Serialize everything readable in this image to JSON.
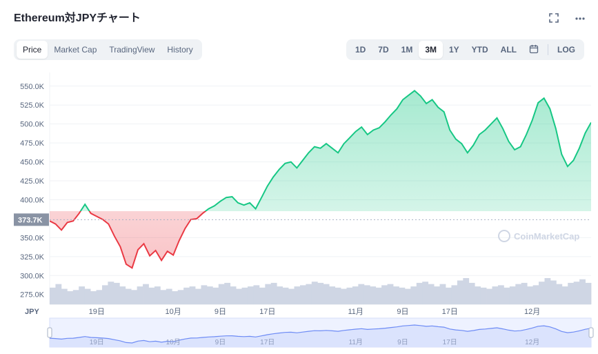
{
  "header": {
    "title": "Ethereum対JPYチャート",
    "fullscreen_icon": "expand-icon",
    "more_icon": "more-horizontal-icon"
  },
  "tabs": [
    {
      "label": "Price",
      "active": true
    },
    {
      "label": "Market Cap",
      "active": false
    },
    {
      "label": "TradingView",
      "active": false
    },
    {
      "label": "History",
      "active": false
    }
  ],
  "ranges": [
    {
      "label": "1D",
      "active": false
    },
    {
      "label": "7D",
      "active": false
    },
    {
      "label": "1M",
      "active": false
    },
    {
      "label": "3M",
      "active": true
    },
    {
      "label": "1Y",
      "active": false
    },
    {
      "label": "YTD",
      "active": false
    },
    {
      "label": "ALL",
      "active": false
    }
  ],
  "calendar_icon": "calendar-icon",
  "log_label": "LOG",
  "watermark": "CoinMarketCap",
  "colors": {
    "up": "#16c784",
    "down": "#ea3943",
    "volume": "#cfd6e4",
    "navigator": "#6d8bf5"
  },
  "chart_data": {
    "type": "line",
    "currency_label": "JPY",
    "y_ticks": [
      "550.0K",
      "525.0K",
      "500.0K",
      "475.0K",
      "450.0K",
      "425.0K",
      "400.0K",
      "350.0K",
      "325.0K",
      "300.0K",
      "275.0K"
    ],
    "y_tick_values": [
      550000,
      525000,
      500000,
      475000,
      450000,
      425000,
      400000,
      350000,
      325000,
      300000,
      275000
    ],
    "ylim": [
      262000,
      568000
    ],
    "baseline": {
      "label": "373.7K",
      "value": 373700
    },
    "x_ticks": [
      {
        "label": "19日",
        "day": 11
      },
      {
        "label": "10月",
        "day": 24
      },
      {
        "label": "9日",
        "day": 32
      },
      {
        "label": "17日",
        "day": 40
      },
      {
        "label": "11月",
        "day": 55
      },
      {
        "label": "9日",
        "day": 63
      },
      {
        "label": "17日",
        "day": 71
      },
      {
        "label": "12月",
        "day": 85
      }
    ],
    "xlim": [
      3,
      95
    ],
    "series": [
      {
        "x": [
          3,
          4,
          5,
          6,
          7,
          8,
          9,
          10,
          11,
          12,
          13,
          14,
          15,
          16,
          17,
          18,
          19,
          20,
          21,
          22,
          23,
          24,
          25,
          26,
          27,
          28,
          29,
          30,
          31,
          32,
          33,
          34,
          35,
          36,
          37,
          38,
          39,
          40,
          41,
          42,
          43,
          44,
          45,
          46,
          47,
          48,
          49,
          50,
          51,
          52,
          53,
          54,
          55,
          56,
          57,
          58,
          59,
          60,
          61,
          62,
          63,
          64,
          65,
          66,
          67,
          68,
          69,
          70,
          71,
          72,
          73,
          74,
          75,
          76,
          77,
          78,
          79,
          80,
          81,
          82,
          83,
          84,
          85,
          86,
          87,
          88,
          89,
          90,
          91,
          92,
          93,
          94,
          95
        ],
        "values": [
          372000,
          368000,
          360000,
          370000,
          372000,
          382000,
          394000,
          382000,
          378000,
          374000,
          368000,
          352000,
          338000,
          315000,
          310000,
          334000,
          342000,
          326000,
          333000,
          320000,
          332000,
          327000,
          346000,
          362000,
          374000,
          375000,
          382000,
          388000,
          392000,
          398000,
          403000,
          404000,
          396000,
          393000,
          396000,
          388000,
          403000,
          418000,
          430000,
          440000,
          448000,
          450000,
          442000,
          452000,
          462000,
          470000,
          468000,
          474000,
          468000,
          462000,
          474000,
          482000,
          490000,
          496000,
          486000,
          492000,
          495000,
          503000,
          512000,
          520000,
          532000,
          538000,
          544000,
          537000,
          527000,
          532000,
          522000,
          516000,
          492000,
          480000,
          474000,
          462000,
          472000,
          486000,
          492000,
          500000,
          508000,
          494000,
          477000,
          466000,
          470000,
          486000,
          505000,
          528000,
          534000,
          520000,
          494000,
          460000,
          444000,
          452000,
          468000,
          488000,
          502000
        ]
      }
    ],
    "volume": [
      28,
      34,
      26,
      22,
      24,
      30,
      26,
      22,
      24,
      32,
      38,
      36,
      30,
      26,
      24,
      30,
      34,
      28,
      30,
      24,
      26,
      22,
      24,
      28,
      30,
      26,
      32,
      30,
      28,
      34,
      36,
      30,
      26,
      28,
      30,
      32,
      28,
      34,
      36,
      30,
      28,
      26,
      30,
      32,
      34,
      38,
      36,
      34,
      30,
      28,
      26,
      28,
      30,
      34,
      32,
      30,
      28,
      32,
      34,
      30,
      28,
      26,
      30,
      36,
      38,
      34,
      30,
      34,
      28,
      32,
      40,
      44,
      36,
      30,
      28,
      26,
      30,
      32,
      28,
      30,
      34,
      36,
      30,
      32,
      38,
      44,
      40,
      34,
      30,
      36,
      38,
      42,
      36
    ],
    "grid": true
  }
}
